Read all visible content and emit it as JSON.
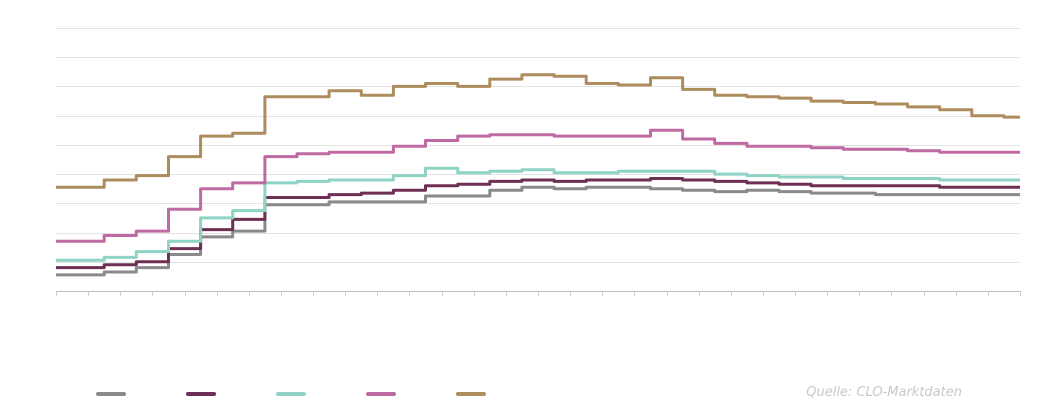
{
  "source": "Quelle: CLO-Marktdaten",
  "chart_data": {
    "type": "line",
    "title": "",
    "xlabel": "",
    "ylabel": "",
    "x_points": 31,
    "ylim": [
      0,
      9
    ],
    "y_gridlines": [
      0,
      1,
      2,
      3,
      4,
      5,
      6,
      7,
      8,
      9
    ],
    "grid": "horizontal",
    "legend": "bottom-left",
    "series": [
      {
        "color": "#8a8a8a",
        "values": [
          0.55,
          0.55,
          0.65,
          0.8,
          1.25,
          1.85,
          2.05,
          2.95,
          2.95,
          3.05,
          3.05,
          3.05,
          3.25,
          3.25,
          3.45,
          3.55,
          3.5,
          3.55,
          3.55,
          3.5,
          3.45,
          3.4,
          3.45,
          3.4,
          3.35,
          3.35,
          3.3,
          3.3,
          3.3,
          3.3,
          3.3
        ]
      },
      {
        "color": "#6e2f55",
        "values": [
          0.8,
          0.8,
          0.9,
          1.0,
          1.45,
          2.1,
          2.45,
          3.2,
          3.2,
          3.3,
          3.35,
          3.45,
          3.6,
          3.65,
          3.75,
          3.8,
          3.75,
          3.8,
          3.8,
          3.85,
          3.8,
          3.75,
          3.7,
          3.65,
          3.6,
          3.6,
          3.6,
          3.6,
          3.55,
          3.55,
          3.55
        ]
      },
      {
        "color": "#8fd3c4",
        "values": [
          1.05,
          1.05,
          1.15,
          1.35,
          1.7,
          2.5,
          2.75,
          3.7,
          3.75,
          3.8,
          3.8,
          3.95,
          4.2,
          4.05,
          4.1,
          4.15,
          4.05,
          4.05,
          4.1,
          4.1,
          4.1,
          4.0,
          3.95,
          3.9,
          3.9,
          3.85,
          3.85,
          3.85,
          3.8,
          3.8,
          3.8
        ]
      },
      {
        "color": "#c06aa3",
        "values": [
          1.7,
          1.7,
          1.9,
          2.05,
          2.8,
          3.5,
          3.7,
          4.6,
          4.7,
          4.75,
          4.75,
          4.95,
          5.15,
          5.3,
          5.35,
          5.35,
          5.3,
          5.3,
          5.3,
          5.5,
          5.2,
          5.05,
          4.95,
          4.95,
          4.9,
          4.85,
          4.85,
          4.8,
          4.75,
          4.75,
          4.75
        ]
      },
      {
        "color": "#ad8c5e",
        "values": [
          3.55,
          3.55,
          3.8,
          3.95,
          4.6,
          5.3,
          5.4,
          6.65,
          6.65,
          6.85,
          6.7,
          7.0,
          7.1,
          7.0,
          7.25,
          7.4,
          7.35,
          7.1,
          7.05,
          7.3,
          6.9,
          6.7,
          6.65,
          6.6,
          6.5,
          6.45,
          6.4,
          6.3,
          6.2,
          6.0,
          5.95
        ]
      }
    ]
  }
}
